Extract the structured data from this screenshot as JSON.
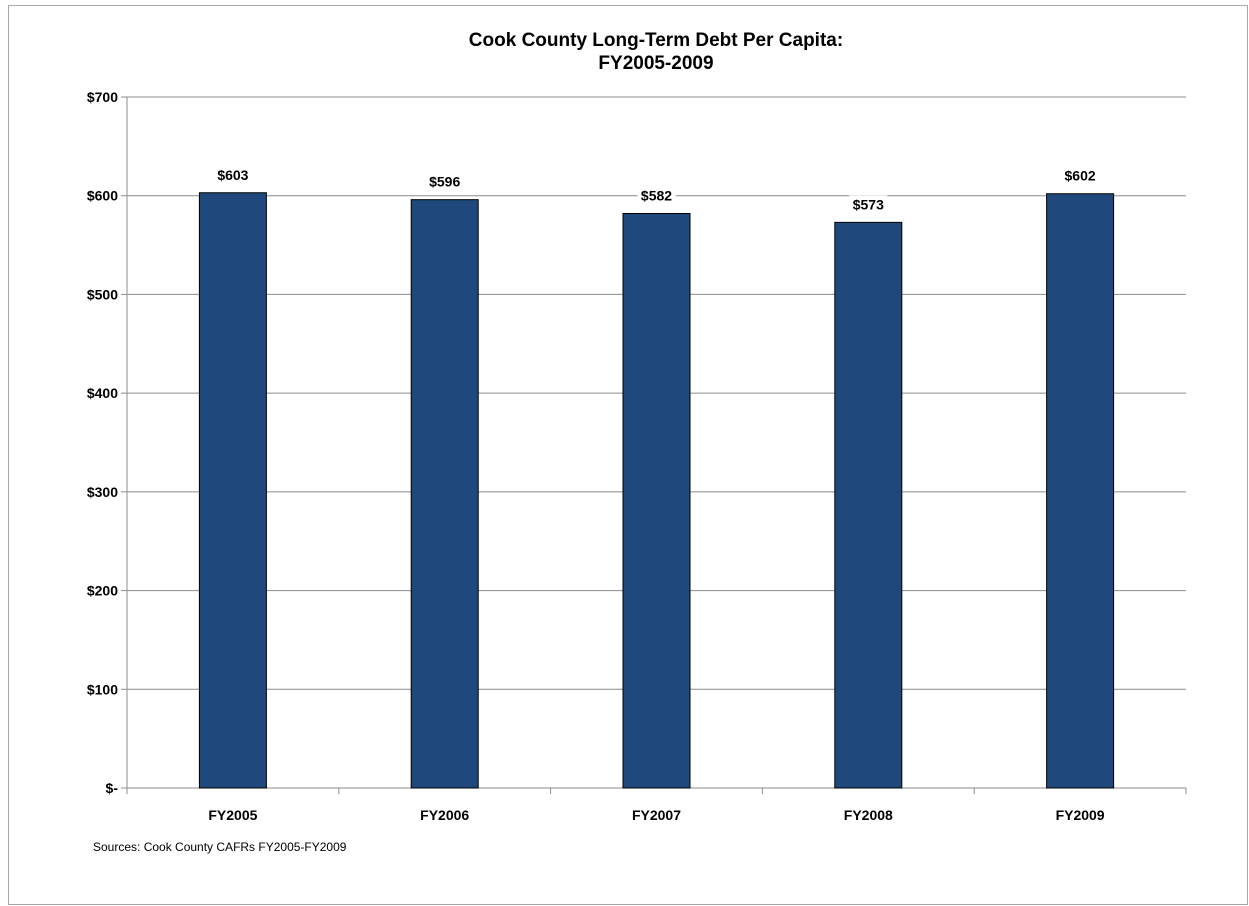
{
  "chart_data": {
    "type": "bar",
    "title": "Cook County Long-Term Debt Per Capita:",
    "subtitle": "FY2005-2009",
    "categories": [
      "FY2005",
      "FY2006",
      "FY2007",
      "FY2008",
      "FY2009"
    ],
    "values": [
      603,
      596,
      582,
      573,
      602
    ],
    "data_labels": [
      "$603",
      "$596",
      "$582",
      "$573",
      "$602"
    ],
    "ylim": [
      0,
      700
    ],
    "yticks": [
      0,
      100,
      200,
      300,
      400,
      500,
      600,
      700
    ],
    "ytick_labels": [
      "$-",
      "$100",
      "$200",
      "$300",
      "$400",
      "$500",
      "$600",
      "$700"
    ],
    "xlabel": "",
    "ylabel": "",
    "grid": true,
    "legend": "none",
    "bar_color": "#1f497d",
    "source_note": "Sources:  Cook County CAFRs FY2005-FY2009"
  }
}
